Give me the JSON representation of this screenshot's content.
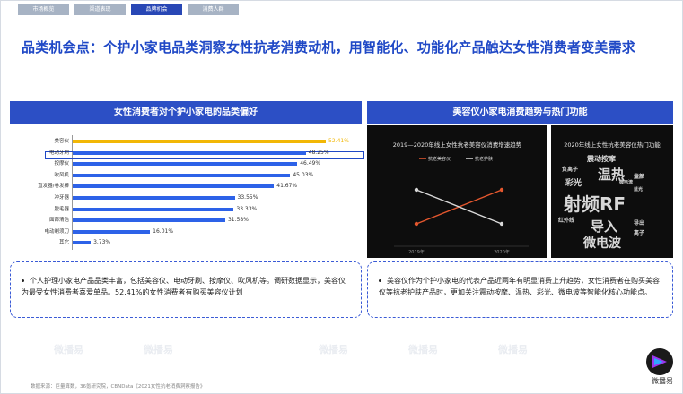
{
  "tabs": [
    "市场概览",
    "渠道表现",
    "品牌机会",
    "消费人群"
  ],
  "headline": "品类机会点：个护小家电品类洞察女性抗老消费动机，用智能化、功能化产品触达女性消费者变美需求",
  "left_panel_title": "女性消费者对个护小家电的品类偏好",
  "right_panel_title": "美容仪小家电消费趋势与热门功能",
  "chart_data": {
    "type": "bar",
    "orientation": "horizontal",
    "categories": [
      "美容仪",
      "电动牙刷",
      "按摩仪",
      "吹风机",
      "直发器/卷发棒",
      "冲牙器",
      "脱毛器",
      "面部清洁",
      "电动剃须刀",
      "其它"
    ],
    "values": [
      52.41,
      48.25,
      46.49,
      45.03,
      41.67,
      33.55,
      33.33,
      31.58,
      16.01,
      3.73
    ],
    "value_labels": [
      "52.41%",
      "48.25%",
      "46.49%",
      "45.03%",
      "41.67%",
      "33.55%",
      "33.33%",
      "31.58%",
      "16.01%",
      "3.73%"
    ],
    "highlight_color": "#f2b705",
    "bar_color": "#2d62e8",
    "xlim": [
      0,
      55
    ]
  },
  "line_chart": {
    "title": "2019—2020年线上女性抗老美容仪消费增速趋势",
    "series": [
      {
        "name": "抗老美容仪",
        "color": "#e4572e",
        "values": [
          1.0,
          2.0
        ]
      },
      {
        "name": "抗老护肤",
        "color": "#d9d9d9",
        "values": [
          2.0,
          1.0
        ]
      }
    ],
    "categories": [
      "2019年",
      "2020年"
    ]
  },
  "cloud": {
    "title": "2020年线上女性抗老美容仪热门功能",
    "words": [
      "震动按摩",
      "负离子",
      "温热",
      "彩光",
      "微电流",
      "蓝光",
      "童颜",
      "射频RF",
      "红外线",
      "导入",
      "导出",
      "离子",
      "微电波"
    ]
  },
  "note_left": "个人护理小家电产品品类丰富，包括美容仪、电动牙刷、按摩仪、吹风机等。调研数据显示，美容仪为最受女性消费者喜爱单品。52.41%的女性消费者有购买美容仪计划",
  "note_right": "美容仪作为个护小家电的代表产品近两年有明显消费上升趋势，女性消费者在购买美容仪等抗老护肤产品时，更加关注震动按摩、温热、彩光、微电波等智能化核心功能点。",
  "source": "数据来源：巨量算数，36氪研究院，CBNData《2021女性抗老消费洞察报告》",
  "brand": "微播易",
  "watermark": "微播易"
}
